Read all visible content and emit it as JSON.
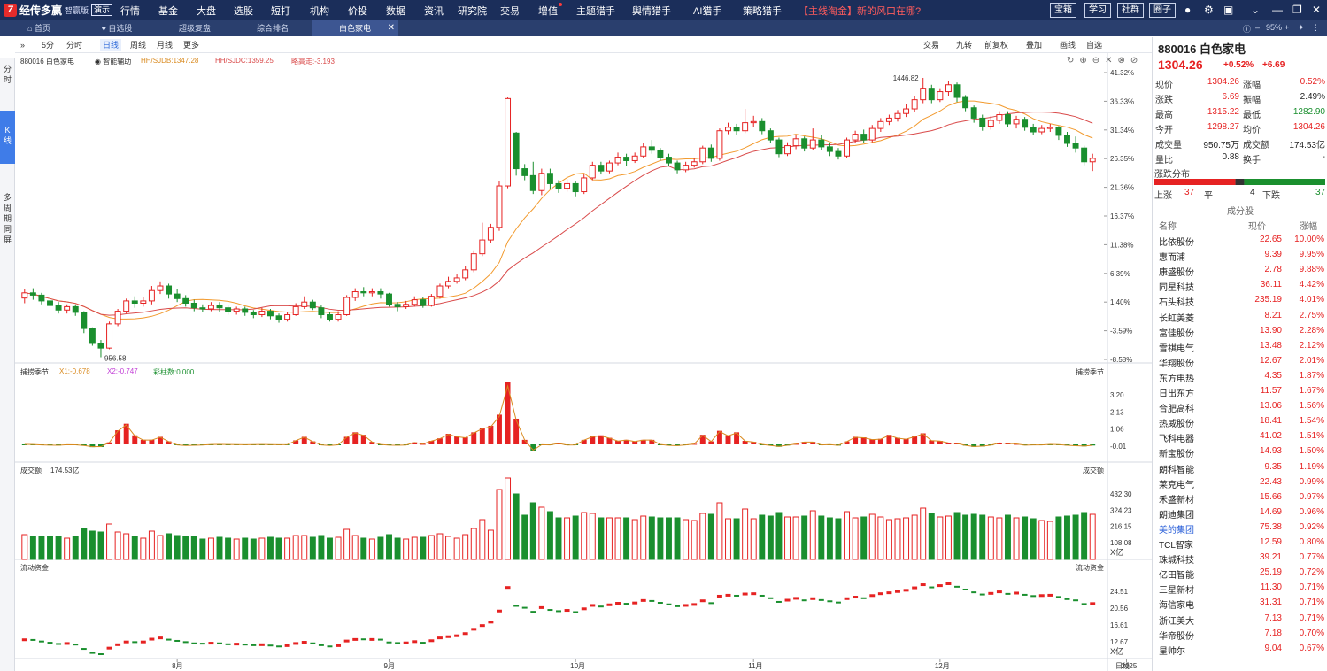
{
  "app": {
    "logo_mark": "7",
    "name": "经传多赢",
    "edition": "智赢版",
    "demo": "演示"
  },
  "nav": [
    "行情",
    "基金",
    "大盘",
    "选股",
    "短打",
    "机构",
    "价投",
    "数据",
    "资讯",
    "研究院",
    "交易",
    "增值",
    "主题猎手",
    "舆情猎手",
    "AI猎手",
    "策略猎手"
  ],
  "nav_promo": "【主线淘金】新的风口在哪?",
  "top_buttons": [
    "宝箱",
    "学习",
    "社群",
    "圈子"
  ],
  "top_icons": [
    "user-icon",
    "gear-icon",
    "window-icon",
    "chevron-down-icon",
    "minimize-icon",
    "restore-icon",
    "close-icon"
  ],
  "tabs": [
    {
      "label": "首页",
      "icon": "home-icon"
    },
    {
      "label": "自选股",
      "icon": "heart-icon"
    },
    {
      "label": "超级复盘",
      "icon": ""
    },
    {
      "label": "综合排名",
      "icon": ""
    },
    {
      "label": "白色家电",
      "icon": ""
    }
  ],
  "tabbar_right": {
    "zoom": "95%"
  },
  "sidebar": [
    "分时",
    "K线",
    "多周期同屏"
  ],
  "period_buttons": [
    "5分",
    "分时",
    "日线",
    "周线",
    "月线",
    "更多"
  ],
  "period_active": "日线",
  "period_right": [
    "交易",
    "九转",
    "前复权",
    "叠加",
    "画线",
    "自选"
  ],
  "chart_header": {
    "code": "880016 白色家电",
    "assist": "智能辅助",
    "sjdb": "HH/SJDB:1347.28",
    "sjdc": "HH/SJDC:1359.25",
    "dyzb": "略高走:-3.193"
  },
  "chart_data": {
    "type": "candlestick",
    "price_axis_labels": [
      "41.32%",
      "36.33%",
      "31.34%",
      "26.35%",
      "21.36%",
      "16.37%",
      "11.38%",
      "6.39%",
      "1.40%",
      "-3.59%",
      "-8.58%"
    ],
    "price_axis_range_pct": [
      -8.58,
      41.32
    ],
    "high_label": "1446.82",
    "low_label": "956.58",
    "x_labels": [
      "8月",
      "9月",
      "10月",
      "11月",
      "12月",
      "2025"
    ],
    "x_label_index": [
      18,
      43,
      65,
      86,
      108,
      130
    ],
    "period_label": "日线",
    "candles_pct": [
      [
        2.1,
        3.0,
        3.6,
        1.2
      ],
      [
        3.0,
        2.6,
        3.8,
        1.8
      ],
      [
        2.6,
        1.6,
        3.0,
        1.0
      ],
      [
        1.6,
        0.8,
        2.2,
        0.2
      ],
      [
        0.8,
        0.0,
        1.4,
        -0.6
      ],
      [
        0.0,
        0.6,
        1.0,
        -0.6
      ],
      [
        0.6,
        -0.4,
        1.0,
        -1.0
      ],
      [
        -0.4,
        -3.2,
        -0.2,
        -4.0
      ],
      [
        -3.2,
        -5.8,
        -3.0,
        -6.2
      ],
      [
        -5.8,
        -6.6,
        -5.2,
        -8.2
      ],
      [
        -6.6,
        -2.4,
        -2.0,
        -6.8
      ],
      [
        -2.4,
        -0.2,
        0.2,
        -2.8
      ],
      [
        -0.2,
        1.6,
        2.0,
        -0.6
      ],
      [
        1.6,
        1.2,
        2.4,
        0.4
      ],
      [
        1.2,
        1.6,
        2.2,
        0.6
      ],
      [
        1.6,
        3.4,
        4.2,
        1.0
      ],
      [
        3.4,
        4.2,
        5.0,
        2.8
      ],
      [
        4.2,
        2.8,
        4.6,
        2.0
      ],
      [
        2.8,
        2.0,
        3.6,
        1.4
      ],
      [
        2.0,
        1.2,
        2.6,
        0.6
      ],
      [
        1.2,
        0.4,
        1.8,
        -0.2
      ],
      [
        0.4,
        0.2,
        1.0,
        -0.4
      ],
      [
        0.2,
        0.8,
        1.4,
        -0.2
      ],
      [
        0.8,
        0.4,
        1.4,
        -0.4
      ],
      [
        0.4,
        -0.2,
        0.8,
        -0.8
      ],
      [
        -0.2,
        0.2,
        0.6,
        -0.8
      ],
      [
        0.2,
        -0.4,
        0.6,
        -1.0
      ],
      [
        -0.4,
        -0.8,
        0.0,
        -1.4
      ],
      [
        -0.8,
        -0.2,
        0.4,
        -1.2
      ],
      [
        -0.2,
        -1.0,
        0.2,
        -1.6
      ],
      [
        -1.0,
        -1.6,
        -0.6,
        -2.2
      ],
      [
        -1.6,
        -0.8,
        -0.4,
        -2.0
      ],
      [
        -0.8,
        0.6,
        1.2,
        -1.0
      ],
      [
        0.6,
        1.4,
        2.4,
        0.2
      ],
      [
        1.4,
        0.4,
        1.8,
        0.0
      ],
      [
        0.4,
        -0.8,
        0.8,
        -1.4
      ],
      [
        -0.8,
        -1.6,
        -0.4,
        -2.0
      ],
      [
        -1.6,
        -0.8,
        -0.2,
        -2.0
      ],
      [
        -0.8,
        2.2,
        2.6,
        -1.0
      ],
      [
        2.2,
        3.2,
        3.8,
        1.6
      ],
      [
        3.2,
        3.0,
        4.0,
        2.4
      ],
      [
        3.0,
        3.2,
        3.8,
        2.4
      ],
      [
        3.2,
        2.8,
        3.8,
        2.0
      ],
      [
        2.8,
        1.0,
        3.0,
        0.6
      ],
      [
        1.0,
        0.6,
        1.4,
        -0.2
      ],
      [
        0.6,
        1.0,
        1.6,
        0.2
      ],
      [
        1.0,
        1.8,
        2.4,
        0.6
      ],
      [
        1.8,
        0.8,
        2.2,
        0.4
      ],
      [
        0.8,
        2.4,
        2.8,
        0.6
      ],
      [
        2.4,
        4.2,
        4.6,
        2.0
      ],
      [
        4.2,
        5.0,
        5.8,
        3.8
      ],
      [
        5.0,
        5.6,
        6.2,
        4.6
      ],
      [
        5.6,
        7.0,
        7.6,
        5.2
      ],
      [
        7.0,
        9.8,
        10.4,
        6.6
      ],
      [
        9.8,
        12.2,
        15.2,
        9.4
      ],
      [
        12.2,
        14.4,
        15.0,
        11.6
      ],
      [
        14.4,
        21.6,
        22.4,
        13.8
      ],
      [
        21.6,
        36.8,
        37.0,
        21.2
      ],
      [
        30.8,
        24.6,
        31.0,
        23.4
      ],
      [
        24.6,
        23.4,
        25.4,
        22.6
      ],
      [
        23.4,
        20.8,
        25.8,
        20.2
      ],
      [
        20.8,
        23.8,
        24.6,
        20.0
      ],
      [
        23.8,
        22.0,
        24.6,
        21.0
      ],
      [
        22.0,
        21.2,
        22.6,
        20.4
      ],
      [
        21.2,
        22.0,
        22.8,
        20.6
      ],
      [
        22.0,
        20.6,
        22.4,
        19.8
      ],
      [
        20.6,
        23.0,
        23.6,
        20.2
      ],
      [
        23.0,
        25.2,
        25.8,
        22.6
      ],
      [
        25.2,
        24.2,
        25.8,
        23.6
      ],
      [
        24.2,
        25.6,
        26.0,
        23.8
      ],
      [
        25.6,
        26.6,
        27.4,
        25.2
      ],
      [
        26.6,
        26.0,
        27.2,
        25.0
      ],
      [
        26.0,
        26.8,
        27.4,
        25.6
      ],
      [
        26.8,
        28.4,
        29.0,
        26.4
      ],
      [
        28.4,
        27.8,
        29.6,
        27.2
      ],
      [
        27.8,
        26.6,
        28.2,
        26.0
      ],
      [
        26.6,
        25.6,
        27.2,
        25.0
      ],
      [
        25.6,
        24.4,
        26.0,
        23.8
      ],
      [
        24.4,
        25.2,
        25.8,
        24.0
      ],
      [
        25.2,
        25.8,
        26.4,
        24.8
      ],
      [
        25.8,
        28.2,
        28.6,
        25.4
      ],
      [
        28.2,
        26.4,
        28.8,
        25.8
      ],
      [
        26.4,
        31.2,
        31.6,
        26.0
      ],
      [
        31.2,
        31.8,
        32.6,
        30.6
      ],
      [
        31.8,
        31.2,
        32.4,
        30.4
      ],
      [
        31.2,
        32.6,
        35.0,
        30.8
      ],
      [
        32.6,
        32.8,
        33.8,
        31.8
      ],
      [
        32.8,
        31.2,
        33.4,
        30.6
      ],
      [
        31.2,
        29.6,
        31.6,
        29.0
      ],
      [
        29.6,
        27.2,
        30.0,
        26.6
      ],
      [
        27.2,
        28.6,
        29.2,
        26.8
      ],
      [
        28.6,
        29.8,
        30.4,
        28.0
      ],
      [
        29.8,
        28.2,
        30.2,
        27.6
      ],
      [
        28.2,
        29.6,
        31.6,
        27.8
      ],
      [
        29.6,
        28.4,
        30.4,
        27.8
      ],
      [
        28.4,
        27.6,
        29.0,
        26.8
      ],
      [
        27.6,
        26.8,
        28.2,
        26.2
      ],
      [
        26.8,
        29.6,
        30.0,
        26.4
      ],
      [
        29.6,
        30.6,
        31.2,
        29.0
      ],
      [
        30.6,
        29.6,
        31.4,
        29.0
      ],
      [
        29.6,
        31.6,
        32.2,
        29.2
      ],
      [
        31.6,
        32.8,
        33.4,
        31.0
      ],
      [
        32.8,
        33.4,
        34.0,
        32.2
      ],
      [
        33.4,
        34.2,
        34.8,
        32.8
      ],
      [
        34.2,
        35.0,
        35.8,
        33.6
      ],
      [
        35.0,
        36.6,
        37.2,
        34.4
      ],
      [
        36.6,
        38.6,
        40.4,
        36.0
      ],
      [
        38.6,
        36.6,
        39.2,
        36.0
      ],
      [
        36.6,
        38.0,
        38.6,
        36.2
      ],
      [
        38.0,
        39.2,
        39.8,
        37.2
      ],
      [
        39.2,
        37.0,
        39.6,
        36.2
      ],
      [
        37.0,
        35.2,
        37.4,
        34.6
      ],
      [
        35.2,
        33.4,
        35.6,
        32.6
      ],
      [
        33.4,
        32.0,
        34.0,
        31.2
      ],
      [
        32.0,
        33.0,
        33.8,
        31.4
      ],
      [
        33.0,
        34.0,
        34.6,
        32.4
      ],
      [
        34.0,
        32.4,
        34.6,
        31.8
      ],
      [
        32.4,
        33.2,
        33.8,
        31.6
      ],
      [
        33.2,
        31.8,
        33.6,
        31.2
      ],
      [
        31.8,
        31.0,
        32.4,
        30.4
      ],
      [
        31.0,
        31.6,
        32.2,
        30.6
      ],
      [
        31.6,
        31.8,
        32.4,
        31.0
      ],
      [
        31.8,
        30.4,
        32.0,
        29.6
      ],
      [
        30.4,
        29.0,
        31.0,
        28.4
      ],
      [
        29.0,
        28.2,
        30.2,
        27.4
      ],
      [
        28.2,
        25.8,
        28.6,
        25.2
      ],
      [
        25.8,
        26.4,
        27.2,
        24.2
      ]
    ],
    "ma1_color": "#f29a2e",
    "ma2_color": "#d94a4a"
  },
  "indicator1": {
    "name": "捕捞季节",
    "x1": "X1:-0.678",
    "x2": "X2:-0.747",
    "bars": "彩柱数:0.000",
    "right_label": "捕捞季节",
    "axis": [
      "3.20",
      "2.13",
      "1.06",
      "-0.01"
    ]
  },
  "volume": {
    "name": "成交额",
    "value": "174.53亿",
    "right_label": "成交额",
    "axis": [
      "432.30",
      "324.23",
      "216.15",
      "108.08"
    ],
    "unit": "X亿"
  },
  "flow": {
    "name": "流动资金",
    "right_label": "流动资金",
    "axis": [
      "24.51",
      "20.56",
      "16.61",
      "12.67"
    ],
    "unit": "X亿"
  },
  "quote": {
    "title": "880016 白色家电",
    "price": "1304.26",
    "change_pct": "+0.52%",
    "change": "+6.69",
    "rows": [
      {
        "l1": "现价",
        "v1": "1304.26",
        "c1": "red",
        "l2": "涨幅",
        "v2": "0.52%",
        "c2": "red"
      },
      {
        "l1": "涨跌",
        "v1": "6.69",
        "c1": "red",
        "l2": "振幅",
        "v2": "2.49%",
        "c2": "black"
      },
      {
        "l1": "最高",
        "v1": "1315.22",
        "c1": "red",
        "l2": "最低",
        "v2": "1282.90",
        "c2": "green"
      },
      {
        "l1": "今开",
        "v1": "1298.27",
        "c1": "red",
        "l2": "均价",
        "v2": "1304.26",
        "c2": "red"
      },
      {
        "l1": "成交量",
        "v1": "950.75万",
        "c1": "black",
        "l2": "成交额",
        "v2": "174.53亿",
        "c2": "black"
      },
      {
        "l1": "量比",
        "v1": "0.88",
        "c1": "black",
        "l2": "换手",
        "v2": "-",
        "c2": "black"
      }
    ]
  },
  "distribution": {
    "title": "涨跌分布",
    "up_label": "上涨",
    "up": 37,
    "flat_label": "平",
    "flat": 4,
    "down_label": "下跌",
    "down": 37
  },
  "constituents": {
    "title": "成分股",
    "headers": [
      "名称",
      "现价",
      "涨幅"
    ],
    "rows": [
      {
        "name": "比依股份",
        "price": "22.65",
        "pct": "10.00%"
      },
      {
        "name": "惠而浦",
        "price": "9.39",
        "pct": "9.95%"
      },
      {
        "name": "康盛股份",
        "price": "2.78",
        "pct": "9.88%"
      },
      {
        "name": "同星科技",
        "price": "36.11",
        "pct": "4.42%"
      },
      {
        "name": "石头科技",
        "price": "235.19",
        "pct": "4.01%"
      },
      {
        "name": "长虹美菱",
        "price": "8.21",
        "pct": "2.75%"
      },
      {
        "name": "富佳股份",
        "price": "13.90",
        "pct": "2.28%"
      },
      {
        "name": "雪祺电气",
        "price": "13.48",
        "pct": "2.12%"
      },
      {
        "name": "华翔股份",
        "price": "12.67",
        "pct": "2.01%"
      },
      {
        "name": "东方电热",
        "price": "4.35",
        "pct": "1.87%"
      },
      {
        "name": "日出东方",
        "price": "11.57",
        "pct": "1.67%"
      },
      {
        "name": "合肥高科",
        "price": "13.06",
        "pct": "1.56%"
      },
      {
        "name": "热威股份",
        "price": "18.41",
        "pct": "1.54%"
      },
      {
        "name": "飞科电器",
        "price": "41.02",
        "pct": "1.51%"
      },
      {
        "name": "新宝股份",
        "price": "14.93",
        "pct": "1.50%"
      },
      {
        "name": "朗科智能",
        "price": "9.35",
        "pct": "1.19%"
      },
      {
        "name": "莱克电气",
        "price": "22.43",
        "pct": "0.99%"
      },
      {
        "name": "禾盛新材",
        "price": "15.66",
        "pct": "0.97%"
      },
      {
        "name": "朗迪集团",
        "price": "14.69",
        "pct": "0.96%"
      },
      {
        "name": "美的集团",
        "price": "75.38",
        "pct": "0.92%",
        "highlight": true
      },
      {
        "name": "TCL智家",
        "price": "12.59",
        "pct": "0.80%"
      },
      {
        "name": "珠城科技",
        "price": "39.21",
        "pct": "0.77%"
      },
      {
        "name": "亿田智能",
        "price": "25.19",
        "pct": "0.72%"
      },
      {
        "name": "三星新材",
        "price": "11.30",
        "pct": "0.71%"
      },
      {
        "name": "海信家电",
        "price": "31.31",
        "pct": "0.71%"
      },
      {
        "name": "浙江美大",
        "price": "7.13",
        "pct": "0.71%"
      },
      {
        "name": "华帝股份",
        "price": "7.18",
        "pct": "0.70%"
      },
      {
        "name": "星帅尔",
        "price": "9.04",
        "pct": "0.67%"
      }
    ]
  }
}
